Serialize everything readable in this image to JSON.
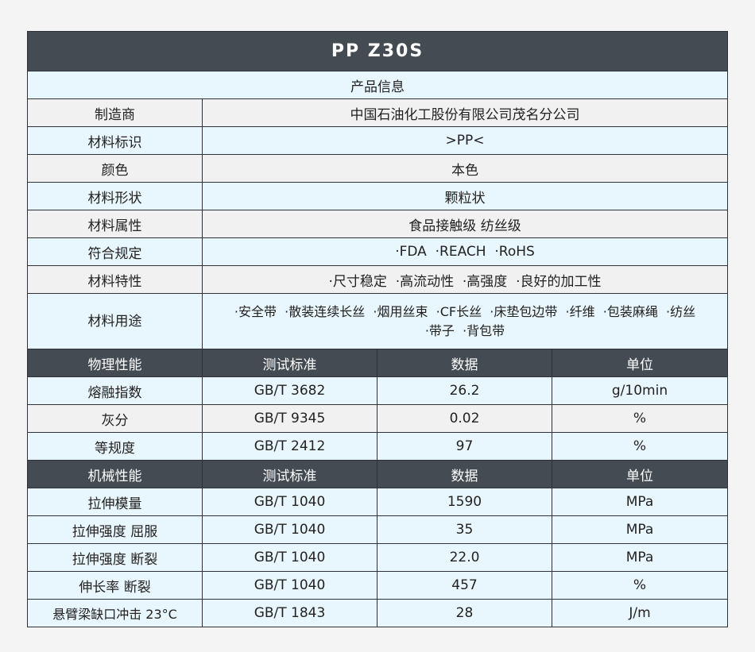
{
  "title": "PP Z30S",
  "product_info": {
    "section_label": "产品信息",
    "rows": [
      {
        "label": "制造商",
        "value": "中国石油化工股份有限公司茂名分公司"
      },
      {
        "label": "材料标识",
        "value": ">PP<"
      },
      {
        "label": "颜色",
        "value": "本色"
      },
      {
        "label": "材料形状",
        "value": "颗粒状"
      },
      {
        "label": "材料属性",
        "value": "食品接触级 纺丝级"
      },
      {
        "label": "符合规定",
        "value": "·FDA  ·REACH  ·RoHS"
      },
      {
        "label": "材料特性",
        "value": "·尺寸稳定  ·高流动性  ·高强度  ·良好的加工性"
      },
      {
        "label": "材料用途",
        "value": "·安全带  ·散装连续长丝  ·烟用丝束  ·CF长丝  ·床垫包边带  ·纤维  ·包装麻绳  ·纺丝",
        "value2": "·带子  ·背包带"
      }
    ]
  },
  "physical": {
    "headers": [
      "物理性能",
      "测试标准",
      "数据",
      "单位"
    ],
    "rows": [
      [
        "熔融指数",
        "GB/T 3682",
        "26.2",
        "g/10min"
      ],
      [
        "灰分",
        "GB/T 9345",
        "0.02",
        "%"
      ],
      [
        "等规度",
        "GB/T 2412",
        "97",
        "%"
      ]
    ]
  },
  "mechanical": {
    "headers": [
      "机械性能",
      "测试标准",
      "数据",
      "单位"
    ],
    "rows": [
      [
        "拉伸模量",
        "GB/T 1040",
        "1590",
        "MPa"
      ],
      [
        "拉伸强度 屈服",
        "GB/T 1040",
        "35",
        "MPa"
      ],
      [
        "拉伸强度 断裂",
        "GB/T 1040",
        "22.0",
        "MPa"
      ],
      [
        "伸长率 断裂",
        "GB/T 1040",
        "457",
        "%"
      ],
      [
        "悬臂梁缺口冲击 23°C",
        "GB/T 1843",
        "28",
        "J/m"
      ]
    ]
  }
}
